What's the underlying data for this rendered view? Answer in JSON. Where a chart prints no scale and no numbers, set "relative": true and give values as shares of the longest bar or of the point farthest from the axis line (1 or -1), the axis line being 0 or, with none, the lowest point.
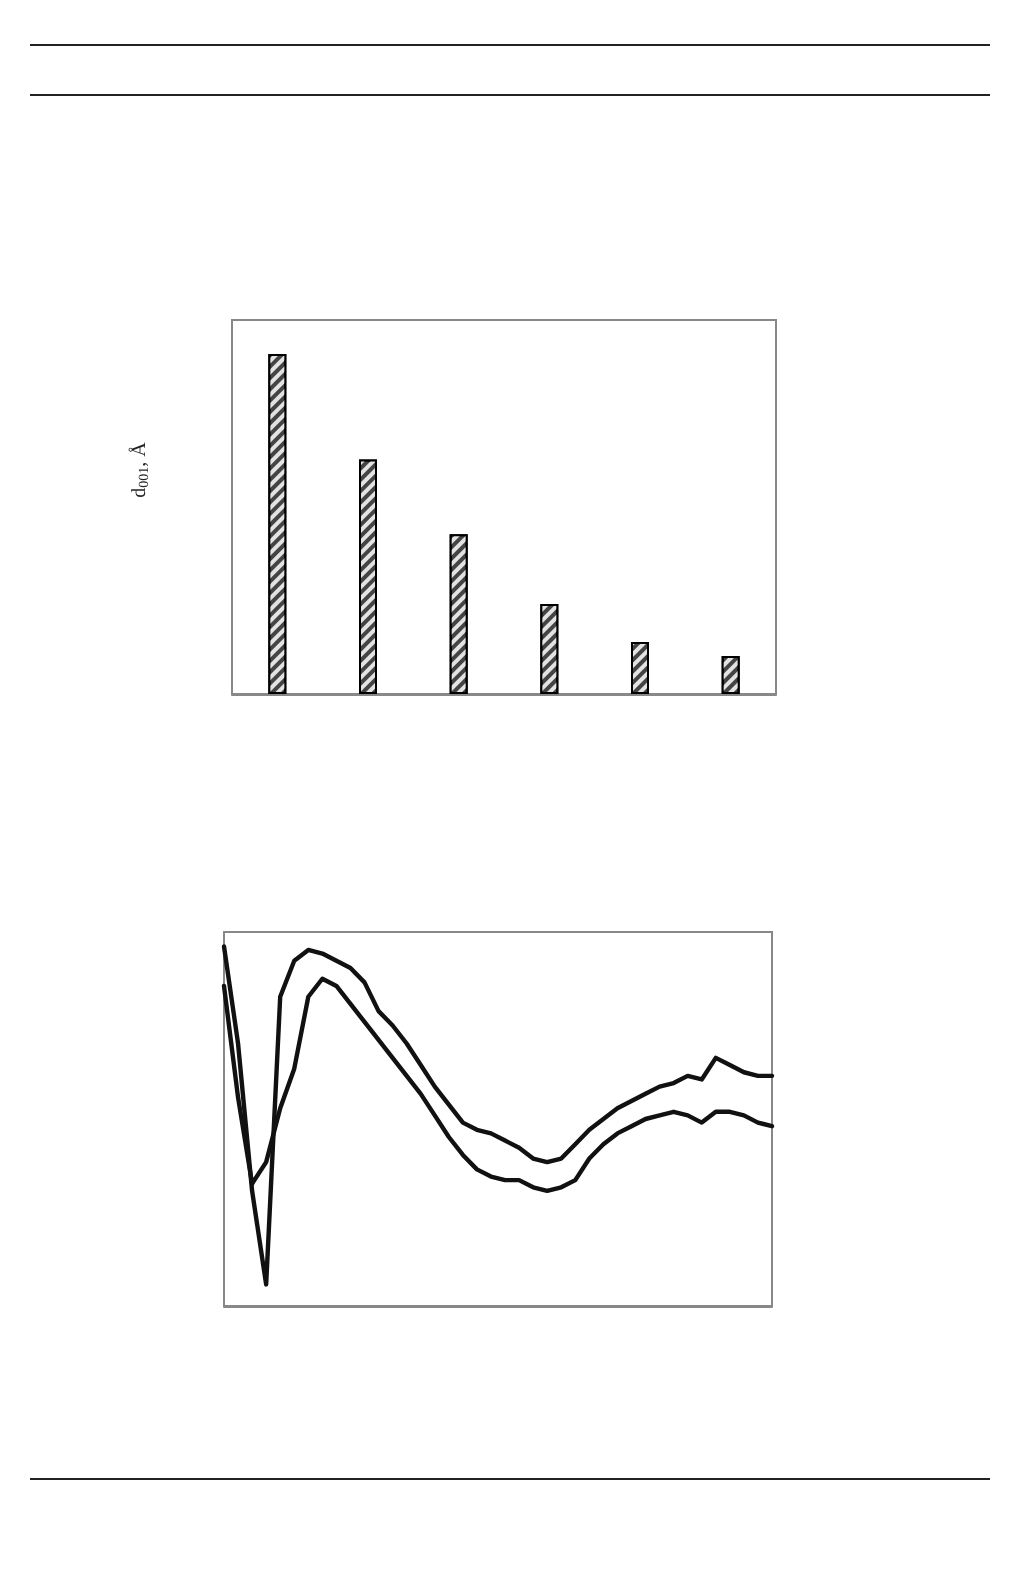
{
  "chart_data": [
    {
      "type": "bar",
      "ylabel": "d$_{001}$, Å",
      "relative": true,
      "categories": [
        null,
        null,
        null,
        null,
        null,
        null
      ],
      "color": "#444444",
      "values": [
        1,
        0.69,
        0.47,
        0.265,
        0.153,
        0.112
      ]
    },
    {
      "type": "line",
      "relative": true,
      "marker": "none",
      "line_style": "solid",
      "categories": [
        null,
        null,
        null,
        null,
        null,
        null,
        null,
        null,
        null,
        null,
        null,
        null,
        null,
        null,
        null,
        null,
        null,
        null,
        null,
        null,
        null,
        null,
        null,
        null,
        null,
        null,
        null,
        null,
        null,
        null,
        null,
        null,
        null,
        null,
        null,
        null,
        null,
        null,
        null,
        null
      ],
      "series": [
        {
          "color": "#111111",
          "values": [
            1.0,
            0.73,
            0.32,
            0.06,
            0.86,
            0.96,
            0.99,
            0.98,
            0.96,
            0.94,
            0.9,
            0.82,
            0.78,
            0.73,
            0.67,
            0.61,
            0.56,
            0.51,
            0.49,
            0.48,
            0.46,
            0.44,
            0.41,
            0.4,
            0.41,
            0.45,
            0.49,
            0.52,
            0.55,
            0.57,
            0.59,
            0.61,
            0.62,
            0.64,
            0.63,
            0.69,
            0.67,
            0.65,
            0.64,
            0.64
          ]
        },
        {
          "color": "#111111",
          "values": [
            0.89,
            0.58,
            0.34,
            0.4,
            0.55,
            0.66,
            0.86,
            0.91,
            0.89,
            0.84,
            0.79,
            0.74,
            0.69,
            0.64,
            0.59,
            0.53,
            0.47,
            0.42,
            0.38,
            0.36,
            0.35,
            0.35,
            0.33,
            0.32,
            0.33,
            0.35,
            0.41,
            0.45,
            0.48,
            0.5,
            0.52,
            0.53,
            0.54,
            0.53,
            0.51,
            0.54,
            0.54,
            0.53,
            0.51,
            0.5
          ]
        }
      ]
    }
  ]
}
